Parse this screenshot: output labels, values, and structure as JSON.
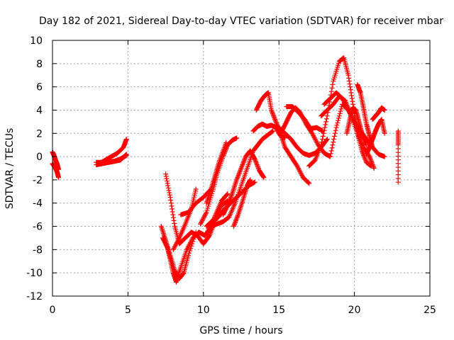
{
  "chart_data": {
    "type": "scatter",
    "title": "Day 182 of 2021, Sidereal Day-to-day VTEC variation (SDTVAR) for receiver mbar",
    "xlabel": "GPS time / hours",
    "ylabel": "SDTVAR / TECUs",
    "xlim": [
      0,
      25
    ],
    "ylim": [
      -12,
      10
    ],
    "xticks": [
      "0",
      "5",
      "10",
      "15",
      "20",
      "25"
    ],
    "yticks": [
      "-12",
      "-10",
      "-8",
      "-6",
      "-4",
      "-2",
      "0",
      "2",
      "4",
      "6",
      "8",
      "10"
    ],
    "grid": true,
    "marker": "plus",
    "color": "#ff0000",
    "series": [
      {
        "x": [
          0.0,
          0.1,
          0.2,
          0.3,
          0.35,
          0.4
        ],
        "y": [
          0.4,
          0.1,
          -0.3,
          -0.6,
          -0.9,
          -1.1
        ]
      },
      {
        "x": [
          0.0,
          0.1,
          0.2,
          0.3,
          0.4
        ],
        "y": [
          -0.6,
          -0.8,
          -1.0,
          -1.3,
          -1.8
        ]
      },
      {
        "x": [
          2.9,
          3.3,
          3.7,
          4.1,
          4.5,
          4.9
        ],
        "y": [
          -0.5,
          -0.5,
          -0.5,
          -0.4,
          -0.3,
          0.2
        ]
      },
      {
        "x": [
          2.9,
          3.3,
          3.7,
          4.1,
          4.5,
          4.9
        ],
        "y": [
          -0.7,
          -0.6,
          -0.5,
          -0.4,
          -0.2,
          0.1
        ]
      },
      {
        "x": [
          3.1,
          3.5,
          3.9,
          4.3,
          4.7,
          4.9
        ],
        "y": [
          -0.6,
          -0.3,
          0.0,
          0.3,
          0.8,
          1.5
        ]
      },
      {
        "x": [
          7.3,
          7.6,
          7.8,
          8.0,
          8.2,
          8.5,
          8.9,
          9.3,
          9.7,
          10.1,
          10.5,
          10.8,
          11.2,
          11.6
        ],
        "y": [
          -7.0,
          -7.8,
          -8.8,
          -10.0,
          -10.8,
          -9.5,
          -8.0,
          -7.0,
          -6.5,
          -6.8,
          -6.0,
          -5.0,
          -3.8,
          -3.2
        ]
      },
      {
        "x": [
          7.5,
          7.8,
          8.1,
          8.4,
          8.8,
          9.2,
          9.6,
          10.0,
          10.4,
          10.8,
          11.2,
          11.6
        ],
        "y": [
          -1.5,
          -3.5,
          -6.0,
          -7.5,
          -7.0,
          -6.5,
          -6.8,
          -7.5,
          -6.8,
          -5.5,
          -4.2,
          -3.8
        ]
      },
      {
        "x": [
          7.2,
          7.5,
          7.8,
          8.1,
          8.4,
          8.7,
          9.0,
          9.5
        ],
        "y": [
          -6.0,
          -7.2,
          -8.5,
          -9.8,
          -10.5,
          -10.0,
          -8.5,
          -6.5
        ]
      },
      {
        "x": [
          8.0,
          8.4,
          8.8,
          9.2,
          9.5
        ],
        "y": [
          -8.0,
          -7.0,
          -5.8,
          -4.5,
          -2.8
        ]
      },
      {
        "x": [
          8.5,
          9.0,
          9.5,
          10.0,
          10.5
        ],
        "y": [
          -5.0,
          -4.8,
          -4.0,
          -3.5,
          -2.8
        ]
      },
      {
        "x": [
          10.2,
          10.6,
          11.0,
          11.4,
          11.8,
          12.2,
          12.6,
          13.0,
          13.4
        ],
        "y": [
          -6.0,
          -5.5,
          -5.2,
          -4.5,
          -4.0,
          -3.5,
          -3.0,
          -2.5,
          -2.2
        ]
      },
      {
        "x": [
          10.5,
          10.9,
          11.3,
          11.7,
          12.1,
          12.5,
          12.9,
          13.3,
          13.6,
          13.9,
          14.2,
          14.6
        ],
        "y": [
          -6.0,
          -5.8,
          -5.6,
          -5.2,
          -4.0,
          -2.5,
          -1.0,
          0.5,
          1.0,
          1.5,
          1.8,
          2.2
        ]
      },
      {
        "x": [
          9.8,
          10.2,
          10.6,
          10.9,
          11.3,
          11.6,
          11.9,
          12.2
        ],
        "y": [
          -5.8,
          -4.8,
          -3.0,
          -1.5,
          0.0,
          1.0,
          1.4,
          1.6
        ]
      },
      {
        "x": [
          10.2,
          10.5,
          10.8,
          11.1,
          11.5
        ],
        "y": [
          -4.0,
          -2.8,
          -1.5,
          -0.2,
          1.2
        ]
      },
      {
        "x": [
          11.3,
          11.6,
          11.9,
          12.2,
          12.5,
          12.8,
          13.1,
          13.4,
          13.7,
          14.0
        ],
        "y": [
          -5.0,
          -4.2,
          -3.2,
          -2.0,
          -1.0,
          0.0,
          0.5,
          -0.2,
          -1.2,
          -1.8
        ]
      },
      {
        "x": [
          12.0,
          12.3,
          12.6,
          12.9,
          13.1
        ],
        "y": [
          -6.0,
          -5.0,
          -3.8,
          -2.5,
          -2.0
        ]
      },
      {
        "x": [
          13.3,
          13.6,
          13.9,
          14.2,
          14.5,
          14.8,
          15.1,
          15.4
        ],
        "y": [
          2.2,
          2.6,
          2.8,
          2.6,
          2.7,
          2.5,
          1.8,
          1.6
        ]
      },
      {
        "x": [
          13.5,
          13.8,
          14.1,
          14.3,
          14.5,
          14.8,
          15.1,
          15.4,
          15.8,
          16.2,
          16.6,
          17.0
        ],
        "y": [
          4.0,
          4.8,
          5.3,
          5.5,
          4.0,
          3.0,
          2.0,
          0.8,
          0.0,
          -0.8,
          -1.8,
          -2.3
        ]
      },
      {
        "x": [
          15.0,
          15.4,
          15.8,
          16.2,
          16.6,
          17.0,
          17.4,
          17.8,
          18.2
        ],
        "y": [
          2.5,
          2.0,
          1.5,
          0.8,
          0.3,
          0.1,
          0.3,
          0.8,
          1.5
        ]
      },
      {
        "x": [
          15.2,
          15.5,
          15.8,
          16.1,
          16.4,
          16.8,
          17.2,
          17.6,
          18.0,
          18.4,
          18.8,
          19.2,
          19.6,
          20.0,
          20.4,
          20.8
        ],
        "y": [
          2.2,
          3.0,
          3.8,
          4.2,
          3.8,
          2.8,
          2.0,
          1.0,
          0.3,
          0.0,
          2.5,
          4.5,
          4.0,
          3.0,
          2.0,
          1.0
        ]
      },
      {
        "x": [
          15.5,
          15.9,
          16.3,
          16.7,
          17.1,
          17.5,
          17.9
        ],
        "y": [
          4.3,
          4.3,
          3.8,
          3.2,
          2.4,
          2.5,
          2.2
        ]
      },
      {
        "x": [
          17.0,
          17.4,
          17.8,
          18.2,
          18.6,
          19.0,
          19.3,
          19.6,
          19.9,
          20.2,
          20.5,
          20.8,
          21.1
        ],
        "y": [
          -0.8,
          -0.3,
          1.0,
          3.5,
          6.5,
          8.2,
          8.5,
          7.0,
          4.5,
          2.0,
          0.5,
          -0.5,
          -0.8
        ]
      },
      {
        "x": [
          17.8,
          18.2,
          18.6,
          19.0,
          19.4,
          19.8,
          20.2,
          20.6,
          21.0,
          21.3
        ],
        "y": [
          3.5,
          4.0,
          4.5,
          5.2,
          4.8,
          3.5,
          2.0,
          0.8,
          0.0,
          -1.0
        ]
      },
      {
        "x": [
          18.0,
          18.4,
          18.8,
          19.2,
          19.6,
          20.0,
          20.4,
          20.8,
          21.2,
          21.6,
          22.0
        ],
        "y": [
          4.5,
          5.0,
          5.5,
          5.0,
          4.0,
          3.0,
          2.2,
          1.5,
          0.8,
          0.2,
          0.0
        ]
      },
      {
        "x": [
          19.5,
          19.7,
          19.9,
          20.1,
          20.3,
          20.5
        ],
        "y": [
          2.0,
          3.2,
          4.2,
          4.0,
          3.0,
          2.0
        ]
      },
      {
        "x": [
          20.2,
          20.4,
          20.6,
          20.8,
          21.0,
          21.2
        ],
        "y": [
          6.2,
          5.5,
          4.2,
          2.8,
          1.8,
          0.8
        ]
      },
      {
        "x": [
          20.8,
          21.0,
          21.2,
          21.4,
          21.6,
          21.8,
          22.0
        ],
        "y": [
          0.2,
          0.8,
          1.5,
          2.2,
          2.8,
          3.2,
          2.0
        ]
      },
      {
        "x": [
          21.2,
          21.4,
          21.6,
          21.8,
          22.0
        ],
        "y": [
          3.2,
          3.5,
          3.8,
          4.2,
          4.0
        ]
      },
      {
        "x": [
          22.9,
          22.9,
          22.9
        ],
        "y": [
          2.2,
          1.0,
          -2.2
        ]
      }
    ]
  }
}
